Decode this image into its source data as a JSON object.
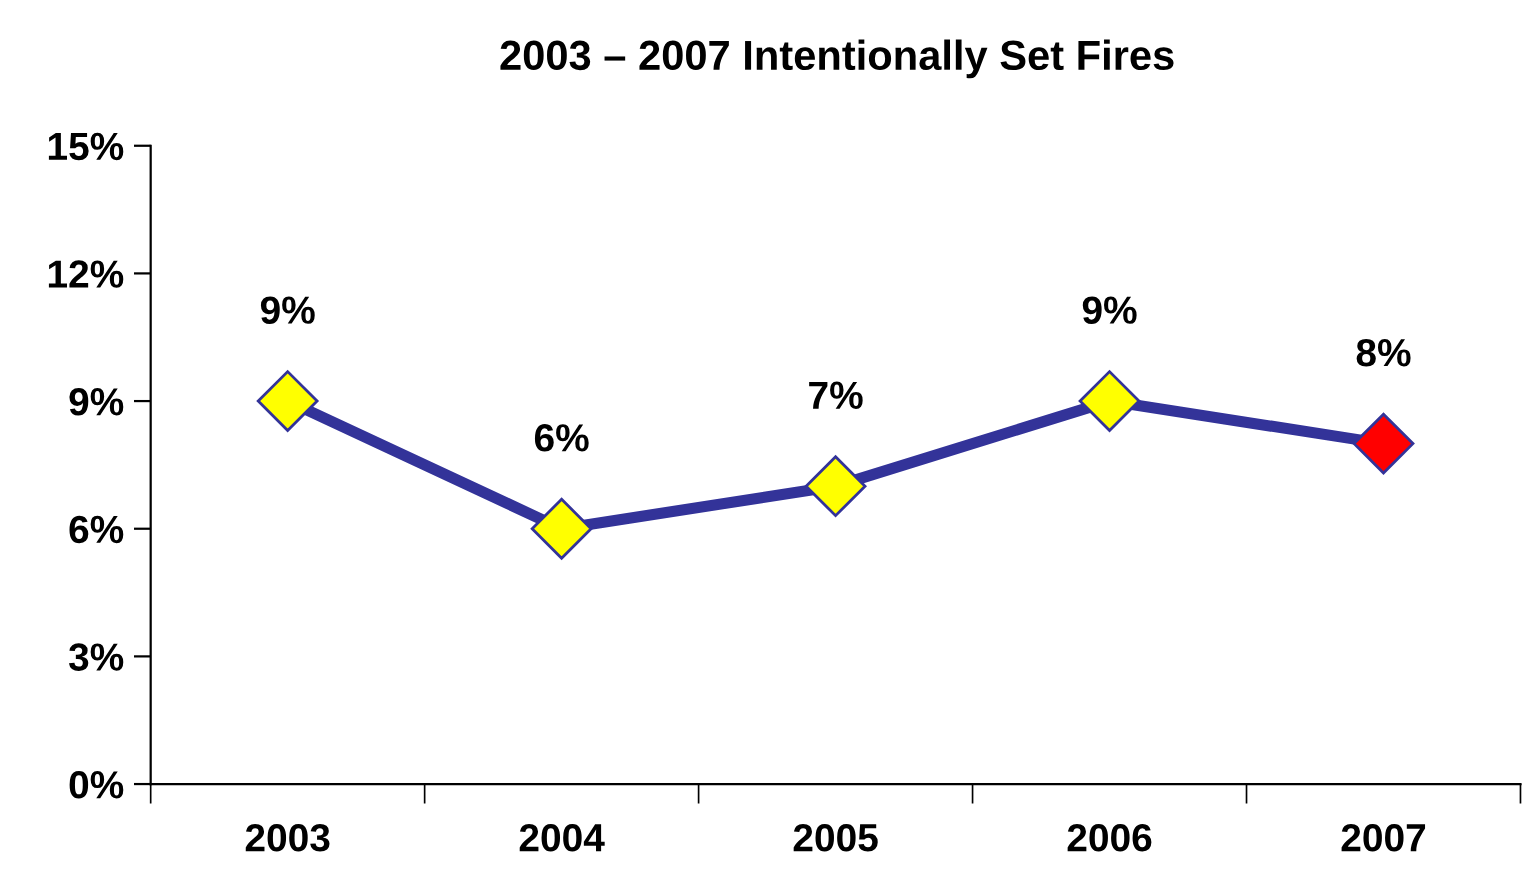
{
  "chart_data": {
    "type": "line",
    "title": "2003 – 2007 Intentionally Set Fires",
    "categories": [
      "2003",
      "2004",
      "2005",
      "2006",
      "2007"
    ],
    "series": [
      {
        "color": "#333399",
        "colors": [
          "#ffff00",
          "#ffff00",
          "#ffff00",
          "#ffff00",
          "#ff0000"
        ],
        "values": [
          9,
          6,
          7,
          9,
          8
        ],
        "value_labels": [
          "9%",
          "6%",
          "7%",
          "9%",
          "8%"
        ]
      }
    ],
    "ylim": [
      0,
      15
    ],
    "yticks": [
      {
        "value": 0,
        "label": "0%"
      },
      {
        "value": 3,
        "label": "3%"
      },
      {
        "value": 6,
        "label": "6%"
      },
      {
        "value": 9,
        "label": "9%"
      },
      {
        "value": 12,
        "label": "12%"
      },
      {
        "value": 15,
        "label": "15%"
      }
    ],
    "grid": false,
    "legend": false,
    "marker": "diamond",
    "line_style": "solid"
  }
}
